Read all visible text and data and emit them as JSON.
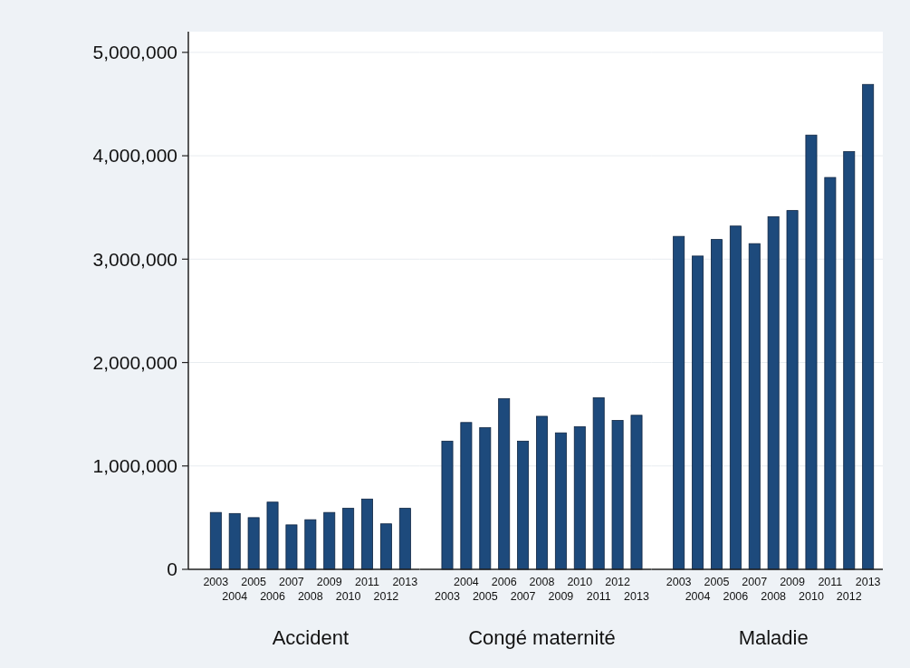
{
  "chart_data": [
    {
      "type": "bar",
      "xlabel": "Accident",
      "categories": [
        "2003",
        "2004",
        "2005",
        "2006",
        "2007",
        "2008",
        "2009",
        "2010",
        "2011",
        "2012",
        "2013"
      ],
      "values": [
        550000,
        540000,
        500000,
        650000,
        430000,
        480000,
        550000,
        590000,
        680000,
        440000,
        590000
      ],
      "color": "#1d4a7c",
      "ylim": [
        0,
        5200000
      ],
      "yticks": [
        {
          "value": 0,
          "label": "0"
        },
        {
          "value": 1000000,
          "label": "1,000,000"
        },
        {
          "value": 2000000,
          "label": "2,000,000"
        },
        {
          "value": 3000000,
          "label": "3,000,000"
        },
        {
          "value": 4000000,
          "label": "4,000,000"
        },
        {
          "value": 5000000,
          "label": "5,000,000"
        }
      ],
      "grid": "y"
    },
    {
      "type": "bar",
      "xlabel": "Congé maternité",
      "categories": [
        "2003",
        "2004",
        "2005",
        "2006",
        "2007",
        "2008",
        "2009",
        "2010",
        "2011",
        "2012",
        "2013"
      ],
      "values": [
        1240000,
        1420000,
        1370000,
        1650000,
        1240000,
        1480000,
        1320000,
        1380000,
        1660000,
        1440000,
        1490000
      ],
      "color": "#1d4a7c",
      "ylim": [
        0,
        5200000
      ],
      "yticks": [
        0,
        1000000,
        2000000,
        3000000,
        4000000,
        5000000
      ],
      "grid": "y",
      "tick_labels": "x"
    },
    {
      "type": "bar",
      "xlabel": "Maladie",
      "categories": [
        "2003",
        "2004",
        "2005",
        "2006",
        "2007",
        "2008",
        "2009",
        "2010",
        "2011",
        "2012",
        "2013"
      ],
      "values": [
        3220000,
        3030000,
        3190000,
        3320000,
        3150000,
        3410000,
        3470000,
        4200000,
        3790000,
        4040000,
        4690000
      ],
      "color": "#1d4a7c",
      "ylim": [
        0,
        5200000
      ],
      "yticks": [
        0,
        1000000,
        2000000,
        3000000,
        4000000,
        5000000
      ],
      "grid": "y",
      "tick_labels": "x"
    }
  ]
}
